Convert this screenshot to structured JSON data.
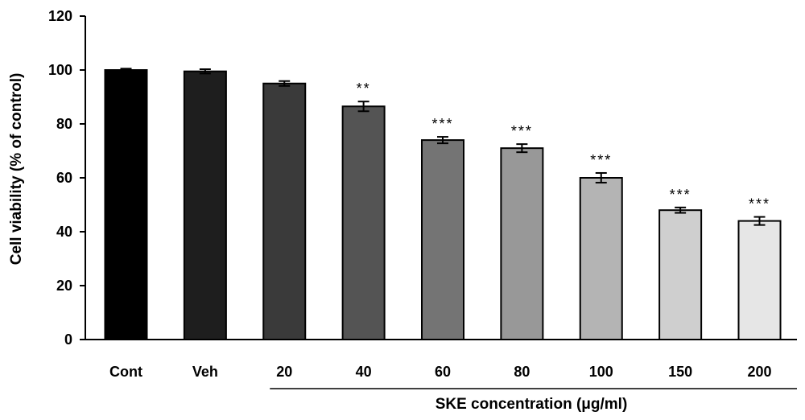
{
  "chart_data": {
    "type": "bar",
    "categories": [
      "Cont",
      "Veh",
      "20",
      "40",
      "60",
      "80",
      "100",
      "150",
      "200"
    ],
    "values": [
      100,
      99.5,
      95,
      86.5,
      74,
      71,
      60,
      48,
      44
    ],
    "errors": [
      0.5,
      0.8,
      0.9,
      1.8,
      1.2,
      1.5,
      1.8,
      1.0,
      1.5
    ],
    "significance": [
      "",
      "",
      "",
      "**",
      "***",
      "***",
      "***",
      "***",
      "***"
    ],
    "bar_colors": [
      "#000000",
      "#1e1e1e",
      "#3a3a3a",
      "#545454",
      "#747474",
      "#989898",
      "#b4b4b4",
      "#cfcfcf",
      "#e6e6e6"
    ],
    "ylabel": "Cell viability (% of control)",
    "xlabel": "SKE concentration (μg/ml)",
    "xlabel_group_start": "20",
    "ylim": [
      0,
      120
    ],
    "yticks": [
      0,
      20,
      40,
      60,
      80,
      100,
      120
    ],
    "grid": false,
    "legend": "none"
  }
}
